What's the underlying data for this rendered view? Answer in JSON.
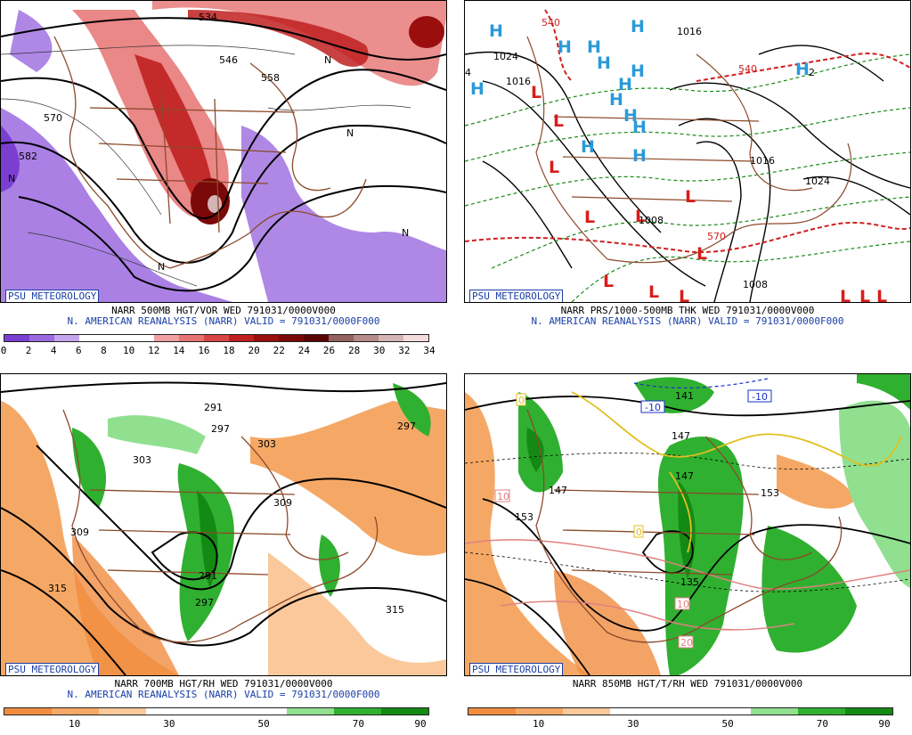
{
  "panels": [
    {
      "id": "500mb",
      "badge": "PSU METEOROLOGY",
      "title": "NARR 500MB HGT/VOR WED 791031/0000V000",
      "subtitle": "N. AMERICAN REANALYSIS (NARR) VALID = 791031/0000F000",
      "colorbar": {
        "colors": [
          "#7a3fd0",
          "#9b6ae0",
          "#c3a6ee",
          "#ffffff",
          "#ffffff",
          "#ffffff",
          "#f0a0a0",
          "#e67272",
          "#d84444",
          "#c02020",
          "#9a0e0e",
          "#7a0808",
          "#5a0404",
          "#946060",
          "#b48a8a",
          "#d4b4b4",
          "#f2dcdc"
        ],
        "tick_labels": [
          "0",
          "2",
          "4",
          "6",
          "8",
          "10",
          "12",
          "14",
          "16",
          "18",
          "20",
          "22",
          "24",
          "26",
          "28",
          "30",
          "32",
          "34"
        ]
      },
      "contour_labels": [
        "534",
        "546",
        "558",
        "570",
        "582",
        "N",
        "N",
        "N",
        "N",
        "N"
      ]
    },
    {
      "id": "sfc",
      "badge": "PSU METEOROLOGY",
      "title": "NARR PRS/1000-500MB THK WED 791031/0000V000",
      "subtitle": "N. AMERICAN REANALYSIS (NARR) VALID = 791031/0000F000",
      "contour_labels": [
        "1016",
        "1024",
        "1016",
        "1008",
        "1016",
        "1024",
        "1008",
        "540",
        "540",
        "570",
        "4",
        "2"
      ],
      "high_symbol": "H",
      "low_symbol": "L"
    },
    {
      "id": "700mb",
      "badge": "PSU METEOROLOGY",
      "title": "NARR 700MB HGT/RH WED 791031/0000V000",
      "subtitle": "N. AMERICAN REANALYSIS (NARR) VALID = 791031/0000F000",
      "colorbar": {
        "colors": [
          "#f08c40",
          "#f5a865",
          "#fac89a",
          "#ffffff",
          "#ffffff",
          "#ffffff",
          "#90e090",
          "#30b030",
          "#148a14"
        ],
        "tick_labels": [
          "10",
          "30",
          "50",
          "70",
          "90"
        ]
      },
      "contour_labels": [
        "291",
        "297",
        "303",
        "303",
        "309",
        "309",
        "315",
        "315",
        "291",
        "297",
        "297"
      ]
    },
    {
      "id": "850mb",
      "badge": "PSU METEOROLOGY",
      "title": "NARR 850MB HGT/T/RH WED 791031/0000V000",
      "subtitle": "",
      "colorbar": {
        "colors": [
          "#f08c40",
          "#f5a865",
          "#fac89a",
          "#ffffff",
          "#ffffff",
          "#ffffff",
          "#90e090",
          "#30b030",
          "#148a14"
        ],
        "tick_labels": [
          "10",
          "30",
          "50",
          "70",
          "90"
        ]
      },
      "contour_labels": [
        "141",
        "147",
        "147",
        "147",
        "153",
        "153",
        "135",
        "-10",
        "-10",
        "10",
        "10",
        "20",
        "0",
        "0"
      ]
    }
  ]
}
